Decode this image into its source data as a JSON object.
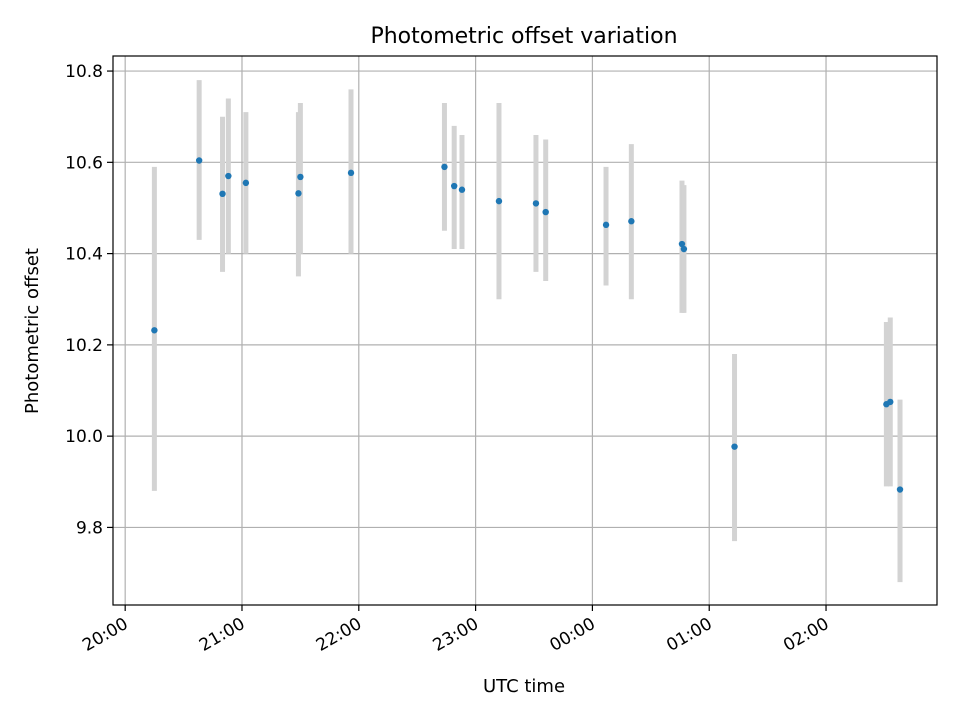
{
  "chart_data": {
    "type": "scatter",
    "title": "Photometric offset variation",
    "xlabel": "UTC time",
    "ylabel": "Photometric offset",
    "x_axis": "time",
    "xlim": [
      "20:00",
      "02:57"
    ],
    "ylim": [
      9.63,
      10.833
    ],
    "grid": true,
    "legend": "none",
    "x_ticks": [
      "20:00",
      "21:00",
      "22:00",
      "23:00",
      "00:00",
      "01:00",
      "02:00"
    ],
    "y_ticks": [
      "9.8",
      "10.0",
      "10.2",
      "10.4",
      "10.6",
      "10.8"
    ],
    "point_color": "#1f77b4",
    "errorbar_color": "#d3d3d3",
    "points": [
      {
        "x": "20:15",
        "y": 10.232,
        "ymin": 9.88,
        "ymax": 10.59
      },
      {
        "x": "20:38",
        "y": 10.604,
        "ymin": 10.43,
        "ymax": 10.78
      },
      {
        "x": "20:50",
        "y": 10.531,
        "ymin": 10.36,
        "ymax": 10.7
      },
      {
        "x": "20:53",
        "y": 10.57,
        "ymin": 10.4,
        "ymax": 10.74
      },
      {
        "x": "21:02",
        "y": 10.555,
        "ymin": 10.4,
        "ymax": 10.71
      },
      {
        "x": "21:29",
        "y": 10.532,
        "ymin": 10.35,
        "ymax": 10.71
      },
      {
        "x": "21:30",
        "y": 10.568,
        "ymin": 10.4,
        "ymax": 10.73
      },
      {
        "x": "21:56",
        "y": 10.577,
        "ymin": 10.4,
        "ymax": 10.76
      },
      {
        "x": "22:44",
        "y": 10.59,
        "ymin": 10.45,
        "ymax": 10.73
      },
      {
        "x": "22:49",
        "y": 10.548,
        "ymin": 10.41,
        "ymax": 10.68
      },
      {
        "x": "22:53",
        "y": 10.54,
        "ymin": 10.41,
        "ymax": 10.66
      },
      {
        "x": "23:12",
        "y": 10.515,
        "ymin": 10.3,
        "ymax": 10.73
      },
      {
        "x": "23:31",
        "y": 10.51,
        "ymin": 10.36,
        "ymax": 10.66
      },
      {
        "x": "23:36",
        "y": 10.491,
        "ymin": 10.34,
        "ymax": 10.65
      },
      {
        "x": "00:07",
        "y": 10.463,
        "ymin": 10.33,
        "ymax": 10.59
      },
      {
        "x": "00:20",
        "y": 10.471,
        "ymin": 10.3,
        "ymax": 10.64
      },
      {
        "x": "00:46",
        "y": 10.421,
        "ymin": 10.27,
        "ymax": 10.56
      },
      {
        "x": "00:47",
        "y": 10.41,
        "ymin": 10.27,
        "ymax": 10.55
      },
      {
        "x": "01:13",
        "y": 9.977,
        "ymin": 9.77,
        "ymax": 10.18
      },
      {
        "x": "02:31",
        "y": 10.07,
        "ymin": 9.89,
        "ymax": 10.25
      },
      {
        "x": "02:33",
        "y": 10.075,
        "ymin": 9.89,
        "ymax": 10.26
      },
      {
        "x": "02:38",
        "y": 9.883,
        "ymin": 9.68,
        "ymax": 10.08
      }
    ]
  }
}
